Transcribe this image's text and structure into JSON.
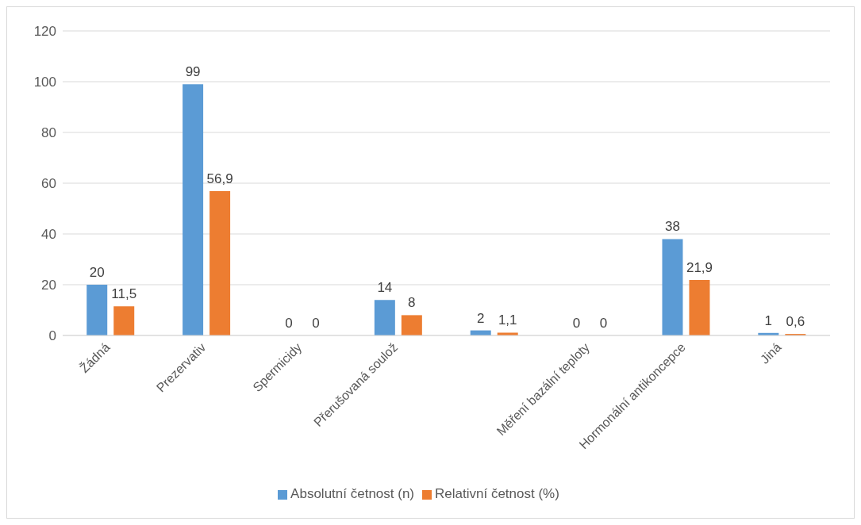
{
  "chart_data": {
    "type": "bar",
    "categories": [
      "Žádná",
      "Prezervativ",
      "Spermicidy",
      "Přerušovaná soulož",
      null,
      "Měření bazální teploty",
      "Hormonální antikoncepce",
      "Jiná"
    ],
    "series": [
      {
        "name": "Absolutní četnost (n)",
        "color": "#5b9bd5",
        "values": [
          20,
          99,
          0,
          14,
          2,
          0,
          38,
          1
        ],
        "value_labels": [
          "20",
          "99",
          "0",
          "14",
          "2",
          "0",
          "38",
          "1"
        ]
      },
      {
        "name": "Relativní četnost (%)",
        "color": "#ed7d31",
        "values": [
          11.5,
          56.9,
          0,
          8,
          1.1,
          0,
          21.9,
          0.6
        ],
        "value_labels": [
          "11,5",
          "56,9",
          "0",
          "8",
          "1,1",
          "0",
          "21,9",
          "0,6"
        ]
      }
    ],
    "ylim": [
      0,
      120
    ],
    "yticks": [
      0,
      20,
      40,
      60,
      80,
      100,
      120
    ],
    "grid": "y",
    "legend": "bottom"
  }
}
